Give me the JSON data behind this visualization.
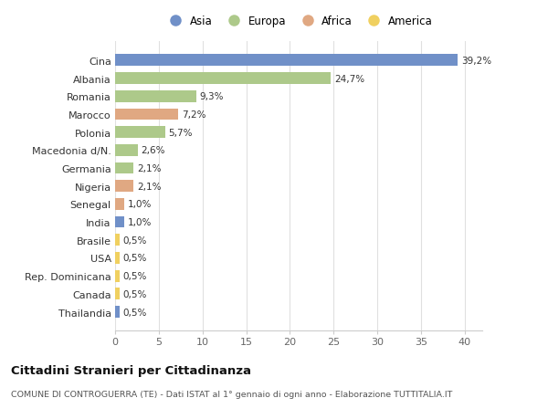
{
  "countries": [
    "Cina",
    "Albania",
    "Romania",
    "Marocco",
    "Polonia",
    "Macedonia d/N.",
    "Germania",
    "Nigeria",
    "Senegal",
    "India",
    "Brasile",
    "USA",
    "Rep. Dominicana",
    "Canada",
    "Thailandia"
  ],
  "values": [
    39.2,
    24.7,
    9.3,
    7.2,
    5.7,
    2.6,
    2.1,
    2.1,
    1.0,
    1.0,
    0.5,
    0.5,
    0.5,
    0.5,
    0.5
  ],
  "labels": [
    "39,2%",
    "24,7%",
    "9,3%",
    "7,2%",
    "5,7%",
    "2,6%",
    "2,1%",
    "2,1%",
    "1,0%",
    "1,0%",
    "0,5%",
    "0,5%",
    "0,5%",
    "0,5%",
    "0,5%"
  ],
  "continents": [
    "Asia",
    "Europa",
    "Europa",
    "Africa",
    "Europa",
    "Europa",
    "Europa",
    "Africa",
    "Africa",
    "Asia",
    "America",
    "America",
    "America",
    "America",
    "Asia"
  ],
  "continent_colors": {
    "Asia": "#7090c8",
    "Europa": "#adc98a",
    "Africa": "#e0a882",
    "America": "#f0d060"
  },
  "legend_order": [
    "Asia",
    "Europa",
    "Africa",
    "America"
  ],
  "title": "Cittadini Stranieri per Cittadinanza",
  "subtitle": "COMUNE DI CONTROGUERRA (TE) - Dati ISTAT al 1° gennaio di ogni anno - Elaborazione TUTTITALIA.IT",
  "xlim": [
    0,
    42
  ],
  "xticks": [
    0,
    5,
    10,
    15,
    20,
    25,
    30,
    35,
    40
  ],
  "background_color": "#ffffff",
  "grid_color": "#e0e0e0",
  "bar_height": 0.65
}
